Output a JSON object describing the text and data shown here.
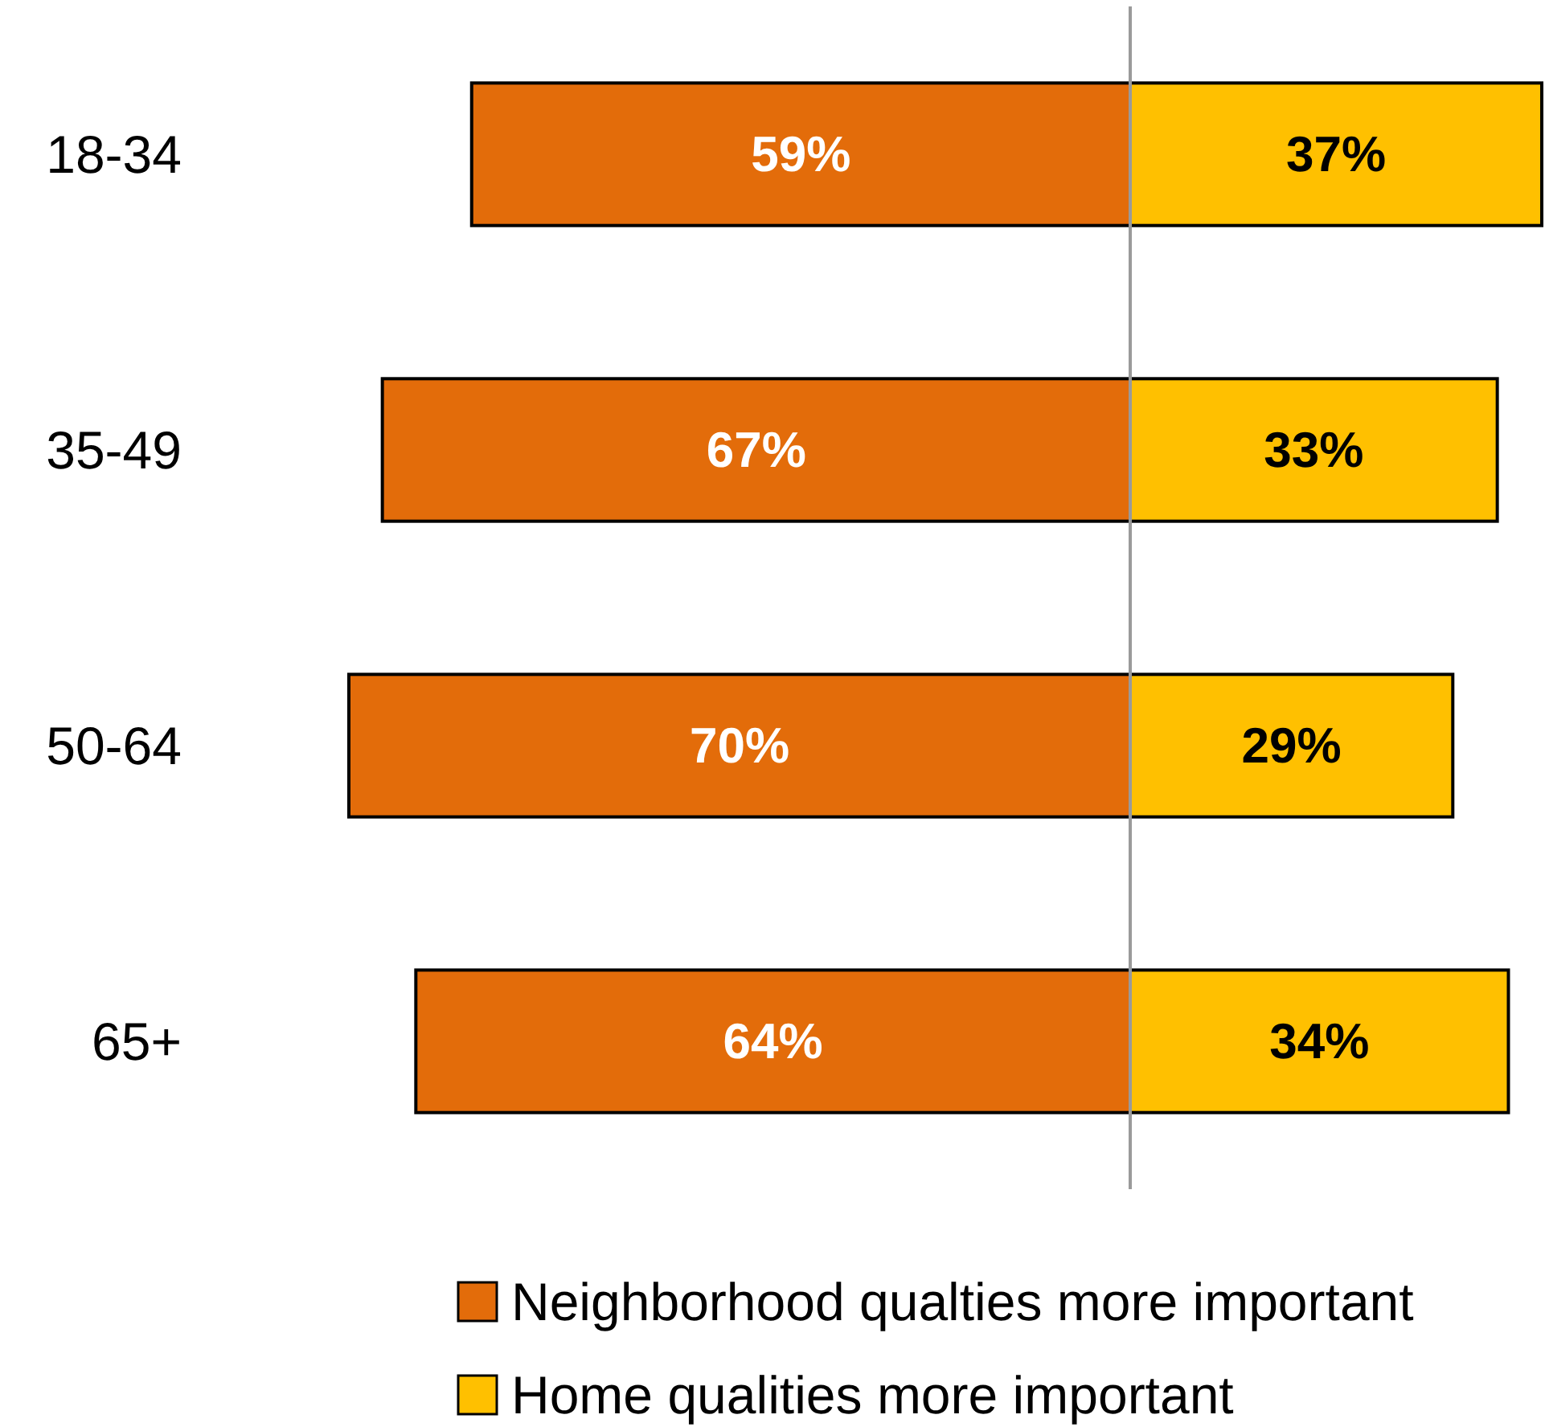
{
  "chart_data": [
    {
      "type": "bar",
      "orientation": "horizontal",
      "categories": [
        "18-34",
        "35-49",
        "50-64",
        "65+"
      ],
      "xlim": [
        70,
        0
      ],
      "tick_labels": "y",
      "series": [
        {
          "name": "Neighborhood qualties more important",
          "color": "#e36c0a",
          "values": [
            59,
            67,
            70,
            64
          ],
          "value_labels": [
            "59%",
            "67%",
            "70%",
            "64%"
          ]
        }
      ],
      "legend": "bottom"
    },
    {
      "type": "bar",
      "orientation": "horizontal",
      "categories": [
        null,
        null,
        null,
        null
      ],
      "xlim": [
        0,
        37
      ],
      "series": [
        {
          "name": "Home qualities more important",
          "color": "#ffc000",
          "values": [
            37,
            33,
            29,
            34
          ],
          "value_labels": [
            "37%",
            "33%",
            "29%",
            "34%"
          ]
        }
      ],
      "legend": "bottom"
    }
  ]
}
